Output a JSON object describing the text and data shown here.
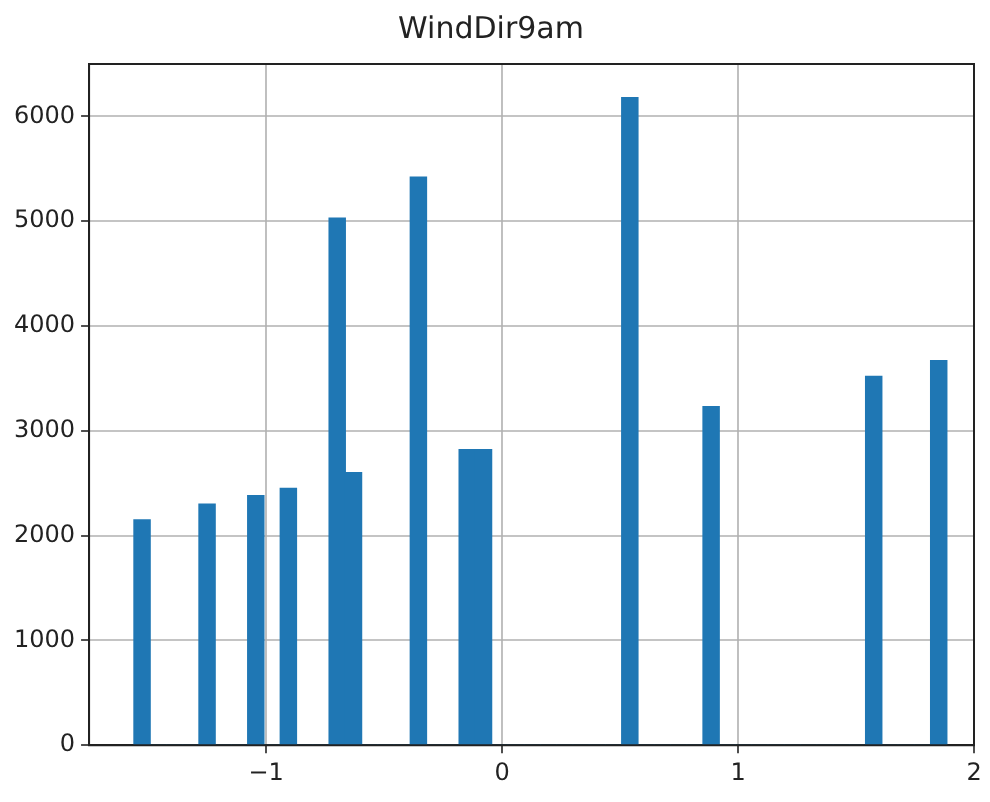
{
  "chart_data": {
    "type": "histogram",
    "title": "WindDir9am",
    "color": "#1f77b4",
    "bins": [
      -1.56,
      -1.491,
      -1.422,
      -1.353,
      -1.284,
      -1.216,
      -1.147,
      -1.078,
      -1.009,
      -0.94,
      -0.871,
      -0.802,
      -0.733,
      -0.664,
      -0.595,
      -0.527,
      -0.458,
      -0.389,
      -0.32,
      -0.251,
      -0.182,
      -0.113,
      -0.044,
      0.025,
      0.094,
      0.163,
      0.231,
      0.3,
      0.369,
      0.438,
      0.507,
      0.576,
      0.645,
      0.714,
      0.783,
      0.852,
      0.92,
      0.989,
      1.058,
      1.127,
      1.196,
      1.265,
      1.334,
      1.403,
      1.472,
      1.541,
      1.609,
      1.678,
      1.747,
      1.816,
      1.885
    ],
    "values": [
      2150,
      0,
      0,
      0,
      2300,
      0,
      0,
      2380,
      0,
      2450,
      0,
      0,
      5030,
      2600,
      0,
      0,
      0,
      5420,
      0,
      0,
      2820,
      2820,
      0,
      0,
      0,
      0,
      0,
      0,
      0,
      0,
      6180,
      0,
      0,
      0,
      0,
      3230,
      0,
      0,
      0,
      0,
      0,
      0,
      0,
      0,
      0,
      3520,
      0,
      0,
      0,
      3670
    ],
    "xlim": [
      -1.75,
      2.0
    ],
    "xticks": [
      {
        "value": -1,
        "label": "−1"
      },
      0,
      1,
      2
    ],
    "ylim": [
      0,
      6500
    ],
    "yticks": [
      0,
      1000,
      2000,
      3000,
      4000,
      5000,
      6000
    ],
    "grid": true
  }
}
